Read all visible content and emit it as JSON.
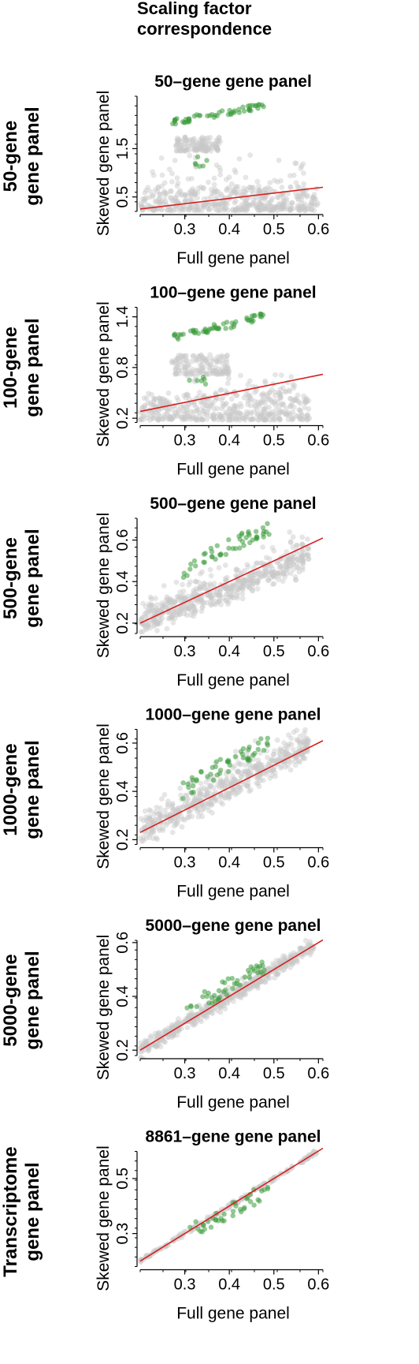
{
  "figure_title": "Scaling factor\ncorrespondence",
  "row_labels": [
    [
      "50-gene",
      "gene panel"
    ],
    [
      "100-gene",
      "gene panel"
    ],
    [
      "500-gene",
      "gene panel"
    ],
    [
      "1000-gene",
      "gene panel"
    ],
    [
      "5000-gene",
      "gene panel"
    ],
    [
      "Transcriptome",
      "gene panel"
    ]
  ],
  "colors": {
    "background_points": "#c8c8c8",
    "highlight_points": "#3a9a3a",
    "fit_line": "#d62020"
  },
  "chart_data": [
    {
      "type": "scatter",
      "title": "50–gene gene panel",
      "xlabel": "Full gene panel",
      "ylabel": "Skewed gene panel",
      "xlim": [
        0.2,
        0.61
      ],
      "ylim": [
        0.2,
        2.65
      ],
      "xticks": [
        0.3,
        0.4,
        0.5,
        0.6
      ],
      "yticks": [
        0.5,
        1.5
      ],
      "line": [
        [
          0.2,
          0.25
        ],
        [
          0.61,
          0.7
        ]
      ],
      "clusters": [
        {
          "color": "grey",
          "n": 420,
          "x": [
            0.2,
            0.6
          ],
          "y": [
            0.22,
            0.7
          ]
        },
        {
          "color": "grey",
          "n": 120,
          "x": [
            0.28,
            0.38
          ],
          "y": [
            1.45,
            1.75
          ]
        },
        {
          "color": "grey",
          "n": 60,
          "x": [
            0.22,
            0.58
          ],
          "y": [
            0.7,
            1.4
          ]
        },
        {
          "color": "green",
          "n": 55,
          "x": [
            0.27,
            0.48
          ],
          "y": [
            2.05,
            2.45
          ],
          "slope": 1.2
        },
        {
          "color": "green",
          "n": 6,
          "x": [
            0.32,
            0.35
          ],
          "y": [
            1.1,
            1.35
          ]
        }
      ]
    },
    {
      "type": "scatter",
      "title": "100–gene gene panel",
      "xlabel": "Full gene panel",
      "ylabel": "Skewed gene panel",
      "xlim": [
        0.2,
        0.61
      ],
      "ylim": [
        0.15,
        1.55
      ],
      "xticks": [
        0.3,
        0.4,
        0.5,
        0.6
      ],
      "yticks": [
        0.2,
        0.8,
        1.4
      ],
      "line": [
        [
          0.2,
          0.28
        ],
        [
          0.61,
          0.72
        ]
      ],
      "clusters": [
        {
          "color": "grey",
          "n": 420,
          "x": [
            0.2,
            0.58
          ],
          "y": [
            0.18,
            0.5
          ]
        },
        {
          "color": "grey",
          "n": 140,
          "x": [
            0.27,
            0.4
          ],
          "y": [
            0.72,
            0.95
          ]
        },
        {
          "color": "grey",
          "n": 40,
          "x": [
            0.3,
            0.55
          ],
          "y": [
            0.5,
            0.75
          ]
        },
        {
          "color": "green",
          "n": 55,
          "x": [
            0.27,
            0.48
          ],
          "y": [
            1.15,
            1.45
          ],
          "slope": 0.9
        },
        {
          "color": "green",
          "n": 6,
          "x": [
            0.31,
            0.35
          ],
          "y": [
            0.6,
            0.75
          ]
        }
      ]
    },
    {
      "type": "scatter",
      "title": "500–gene gene panel",
      "xlabel": "Full gene panel",
      "ylabel": "Skewed gene panel",
      "xlim": [
        0.2,
        0.61
      ],
      "ylim": [
        0.15,
        0.72
      ],
      "xticks": [
        0.3,
        0.4,
        0.5,
        0.6
      ],
      "yticks": [
        0.2,
        0.4,
        0.6
      ],
      "line": [
        [
          0.2,
          0.2
        ],
        [
          0.61,
          0.61
        ]
      ],
      "clusters": [
        {
          "color": "grey",
          "n": 520,
          "x": [
            0.2,
            0.58
          ],
          "y": [
            0.18,
            0.58
          ],
          "diag": 0.85,
          "spread": 0.035
        },
        {
          "color": "green",
          "n": 50,
          "x": [
            0.29,
            0.49
          ],
          "y": [
            0.45,
            0.7
          ],
          "slope": 1.25
        }
      ]
    },
    {
      "type": "scatter",
      "title": "1000–gene gene panel",
      "xlabel": "Full gene panel",
      "ylabel": "Skewed gene panel",
      "xlim": [
        0.2,
        0.61
      ],
      "ylim": [
        0.18,
        0.67
      ],
      "xticks": [
        0.3,
        0.4,
        0.5,
        0.6
      ],
      "yticks": [
        0.2,
        0.4,
        0.6
      ],
      "line": [
        [
          0.2,
          0.23
        ],
        [
          0.61,
          0.61
        ]
      ],
      "clusters": [
        {
          "color": "grey",
          "n": 520,
          "x": [
            0.2,
            0.58
          ],
          "y": [
            0.19,
            0.58
          ],
          "diag": 0.95,
          "spread": 0.03
        },
        {
          "color": "green",
          "n": 50,
          "x": [
            0.29,
            0.49
          ],
          "y": [
            0.4,
            0.65
          ],
          "slope": 1.25
        }
      ]
    },
    {
      "type": "scatter",
      "title": "5000–gene gene panel",
      "xlabel": "Full gene panel",
      "ylabel": "Skewed gene panel",
      "xlim": [
        0.2,
        0.61
      ],
      "ylim": [
        0.18,
        0.62
      ],
      "xticks": [
        0.3,
        0.4,
        0.5,
        0.6
      ],
      "yticks": [
        0.2,
        0.4,
        0.6
      ],
      "line": [
        [
          0.2,
          0.2
        ],
        [
          0.61,
          0.61
        ]
      ],
      "clusters": [
        {
          "color": "grey",
          "n": 500,
          "x": [
            0.2,
            0.59
          ],
          "y": [
            0.2,
            0.59
          ],
          "diag": 1.0,
          "spread": 0.015
        },
        {
          "color": "green",
          "n": 45,
          "x": [
            0.3,
            0.49
          ],
          "y": [
            0.35,
            0.55
          ],
          "slope": 1.05
        }
      ]
    },
    {
      "type": "scatter",
      "title": "8861–gene gene panel",
      "xlabel": "Full gene panel",
      "ylabel": "Skewed gene panel",
      "xlim": [
        0.2,
        0.61
      ],
      "ylim": [
        0.18,
        0.61
      ],
      "xticks": [
        0.3,
        0.4,
        0.5,
        0.6
      ],
      "yticks": [
        0.3,
        0.5
      ],
      "line": [
        [
          0.2,
          0.2
        ],
        [
          0.61,
          0.61
        ]
      ],
      "clusters": [
        {
          "color": "grey",
          "n": 200,
          "x": [
            0.2,
            0.6
          ],
          "y": [
            0.2,
            0.6
          ],
          "diag": 1.0,
          "spread": 0.004
        },
        {
          "color": "green",
          "n": 40,
          "x": [
            0.3,
            0.5
          ],
          "y": [
            0.3,
            0.5
          ],
          "slope": 1.0
        }
      ]
    }
  ]
}
